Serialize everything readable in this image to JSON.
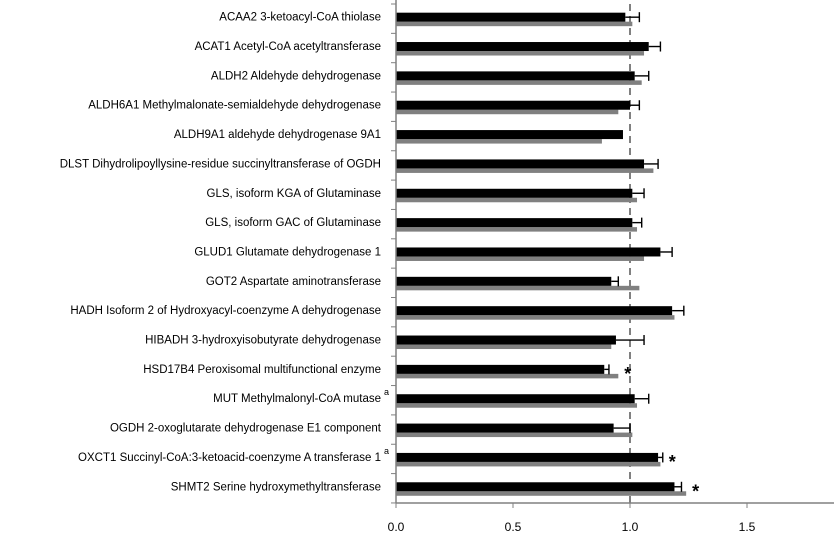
{
  "chart_data": {
    "type": "bar",
    "orientation": "horizontal",
    "title": "",
    "xlabel": "",
    "ylabel": "",
    "xlim": [
      0,
      1.8
    ],
    "x_ticks": [
      "0.0",
      "0.5",
      "1.0",
      "1.5"
    ],
    "reference_line": 1.0,
    "categories": [
      "ACAA2 3-ketoacyl-CoA thiolase",
      "ACAT1 Acetyl-CoA acetyltransferase",
      "ALDH2 Aldehyde dehydrogenase",
      "ALDH6A1 Methylmalonate-semialdehyde dehydrogenase",
      "ALDH9A1 aldehyde dehydrogenase 9A1",
      "DLST Dihydrolipoyllysine-residue succinyltransferase of OGDH",
      "GLS, isoform  KGA of Glutaminase",
      "GLS, isoform GAC of Glutaminase",
      "GLUD1 Glutamate dehydrogenase 1",
      "GOT2 Aspartate aminotransferase",
      "HADH Isoform 2 of Hydroxyacyl-coenzyme A dehydrogenase",
      "HIBADH 3-hydroxyisobutyrate dehydrogenase",
      "HSD17B4 Peroxisomal multifunctional enzyme",
      "MUT Methylmalonyl-CoA mutase",
      "OGDH 2-oxoglutarate dehydrogenase E1 component",
      "OXCT1 Succinyl-CoA:3-ketoacid-coenzyme A transferase 1",
      "SHMT2 Serine hydroxymethyltransferase"
    ],
    "superscripts": [
      "",
      "",
      "",
      "",
      "",
      "",
      "",
      "",
      "",
      "",
      "",
      "",
      "",
      "a",
      "",
      "a",
      ""
    ],
    "significance": [
      "",
      "",
      "",
      "",
      "",
      "",
      "",
      "",
      "",
      "",
      "",
      "",
      "*",
      "",
      "",
      "*",
      "*"
    ],
    "series": [
      {
        "color": "#000000",
        "values": [
          0.98,
          1.08,
          1.02,
          1.0,
          0.97,
          1.06,
          1.01,
          1.01,
          1.13,
          0.92,
          1.18,
          0.94,
          0.89,
          1.02,
          0.93,
          1.12,
          1.19
        ],
        "errors": [
          0.06,
          0.05,
          0.06,
          0.04,
          0.0,
          0.06,
          0.05,
          0.04,
          0.05,
          0.03,
          0.05,
          0.12,
          0.02,
          0.06,
          0.07,
          0.02,
          0.03
        ]
      },
      {
        "color": "#808080",
        "values": [
          1.01,
          1.06,
          1.05,
          0.95,
          0.88,
          1.1,
          1.03,
          1.03,
          1.06,
          1.04,
          1.19,
          0.92,
          0.95,
          1.03,
          1.01,
          1.13,
          1.24
        ]
      }
    ],
    "grid": false,
    "legend": "none"
  }
}
